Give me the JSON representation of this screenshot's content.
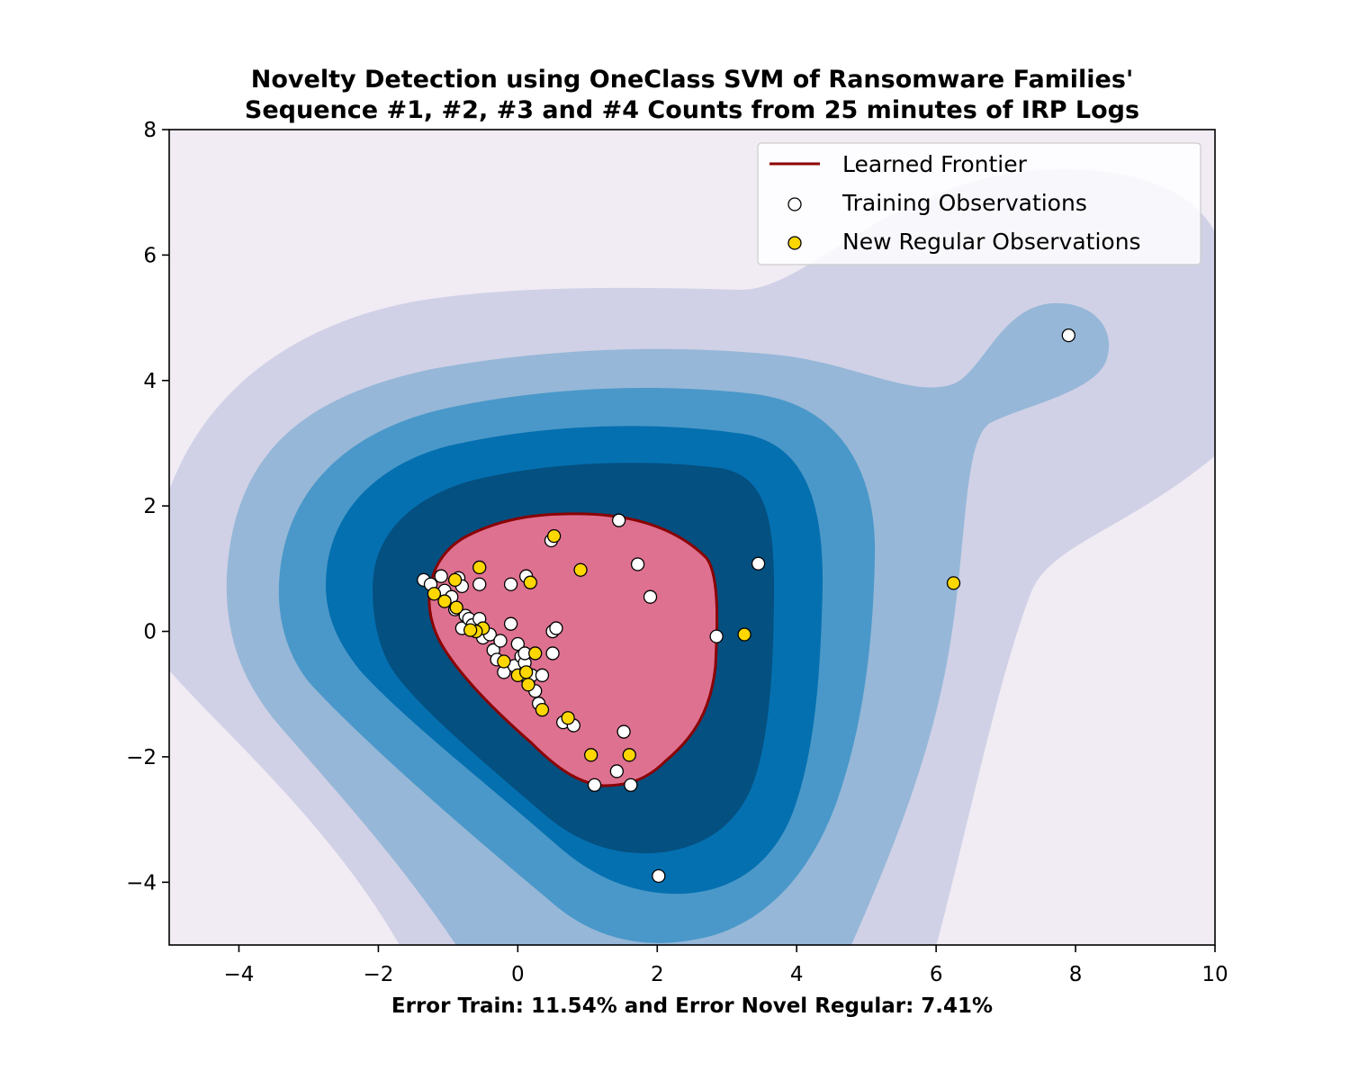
{
  "chart_data": {
    "type": "scatter",
    "title": [
      "Novelty Detection using OneClass SVM of Ransomware Families'",
      "Sequence #1, #2, #3 and #4 Counts from 25 minutes of IRP Logs"
    ],
    "xlabel": "Error Train: 11.54% and Error Novel Regular: 7.41%",
    "ylabel": "",
    "xlim": [
      -5,
      10
    ],
    "ylim": [
      -5,
      8
    ],
    "xticks": [
      -4,
      -2,
      0,
      2,
      4,
      6,
      8,
      10
    ],
    "yticks": [
      -4,
      -2,
      0,
      2,
      4,
      6,
      8
    ],
    "grid": false,
    "legend_position": "top-right",
    "colors": {
      "background": "#f1ebf4",
      "level1": "#d0d1e6",
      "level2": "#96b7d8",
      "level3": "#4a98c9",
      "level4": "#0570b0",
      "level5": "#045080",
      "frontier_fill": "#de7190",
      "frontier_line": "#8b0000",
      "training": "#ffffff",
      "novel": "#ffd700"
    },
    "legend": [
      {
        "label": "Learned Frontier",
        "marker": "line"
      },
      {
        "label": "Training Observations",
        "marker": "white-circle"
      },
      {
        "label": "New Regular Observations",
        "marker": "gold-circle"
      }
    ],
    "series": [
      {
        "name": "Training Observations",
        "points": [
          [
            -1.35,
            0.82
          ],
          [
            -1.25,
            0.75
          ],
          [
            -1.1,
            0.88
          ],
          [
            -1.05,
            0.65
          ],
          [
            -0.95,
            0.55
          ],
          [
            -0.85,
            0.85
          ],
          [
            -0.8,
            0.72
          ],
          [
            -0.9,
            0.35
          ],
          [
            -0.75,
            0.25
          ],
          [
            -0.8,
            0.05
          ],
          [
            -0.7,
            0.2
          ],
          [
            -0.65,
            0.1
          ],
          [
            -0.55,
            0.2
          ],
          [
            -0.5,
            -0.1
          ],
          [
            -0.4,
            -0.05
          ],
          [
            -0.35,
            -0.3
          ],
          [
            -0.25,
            -0.15
          ],
          [
            -0.2,
            -0.65
          ],
          [
            -0.1,
            0.12
          ],
          [
            -0.05,
            -0.55
          ],
          [
            0.0,
            -0.2
          ],
          [
            0.05,
            -0.4
          ],
          [
            0.1,
            -0.5
          ],
          [
            0.15,
            -0.8
          ],
          [
            0.2,
            -0.7
          ],
          [
            0.25,
            -0.95
          ],
          [
            0.3,
            -1.15
          ],
          [
            0.35,
            -0.7
          ],
          [
            0.5,
            -0.35
          ],
          [
            0.5,
            0.0
          ],
          [
            0.55,
            0.05
          ],
          [
            0.65,
            -1.45
          ],
          [
            0.8,
            -1.5
          ],
          [
            0.48,
            1.45
          ],
          [
            0.12,
            0.88
          ],
          [
            -0.1,
            0.75
          ],
          [
            -0.55,
            0.75
          ],
          [
            1.45,
            1.77
          ],
          [
            1.72,
            1.07
          ],
          [
            1.9,
            0.55
          ],
          [
            2.85,
            -0.08
          ],
          [
            3.45,
            1.08
          ],
          [
            1.52,
            -1.6
          ],
          [
            1.42,
            -2.23
          ],
          [
            1.1,
            -2.45
          ],
          [
            1.62,
            -2.45
          ],
          [
            2.02,
            -3.9
          ],
          [
            7.9,
            4.72
          ],
          [
            0.1,
            -0.35
          ],
          [
            -0.3,
            -0.45
          ]
        ]
      },
      {
        "name": "New Regular Observations",
        "points": [
          [
            -1.2,
            0.6
          ],
          [
            -1.05,
            0.48
          ],
          [
            -0.88,
            0.38
          ],
          [
            -0.9,
            0.82
          ],
          [
            -0.55,
            1.02
          ],
          [
            -0.5,
            0.05
          ],
          [
            -0.6,
            0.0
          ],
          [
            -0.68,
            0.02
          ],
          [
            0.18,
            0.78
          ],
          [
            0.52,
            1.52
          ],
          [
            0.9,
            0.98
          ],
          [
            0.25,
            -0.35
          ],
          [
            -0.2,
            -0.48
          ],
          [
            0.0,
            -0.7
          ],
          [
            0.12,
            -0.65
          ],
          [
            0.15,
            -0.85
          ],
          [
            0.35,
            -1.25
          ],
          [
            0.72,
            -1.38
          ],
          [
            1.05,
            -1.97
          ],
          [
            1.6,
            -1.97
          ],
          [
            3.25,
            -0.05
          ],
          [
            6.25,
            0.77
          ]
        ]
      }
    ]
  }
}
